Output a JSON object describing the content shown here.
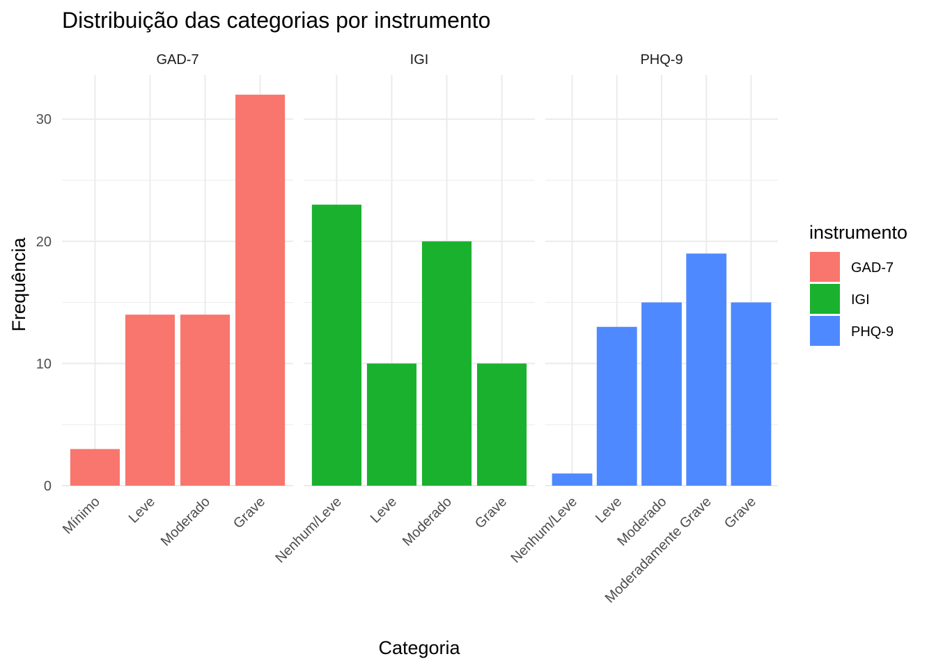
{
  "chart_data": {
    "type": "bar",
    "title": "Distribuição das categorias por instrumento",
    "xlabel": "Categoria",
    "ylabel": "Frequência",
    "ylim": [
      0,
      33.6
    ],
    "yticks": [
      0,
      10,
      20,
      30
    ],
    "grid": true,
    "legend": {
      "title": "instrumento",
      "placement": "right",
      "items": [
        {
          "label": "GAD-7",
          "color": "#F8766D"
        },
        {
          "label": "IGI",
          "color": "#1AB12F"
        },
        {
          "label": "PHQ-9",
          "color": "#4F89FF"
        }
      ]
    },
    "facets": [
      {
        "name": "GAD-7",
        "color": "#F8766D",
        "categories": [
          "Mínimo",
          "Leve",
          "Moderado",
          "Grave"
        ],
        "values": [
          3,
          14,
          14,
          32
        ]
      },
      {
        "name": "IGI",
        "color": "#1AB12F",
        "categories": [
          "Nenhum/Leve",
          "Leve",
          "Moderado",
          "Grave"
        ],
        "values": [
          23,
          10,
          20,
          10
        ]
      },
      {
        "name": "PHQ-9",
        "color": "#4F89FF",
        "categories": [
          "Nenhum/Leve",
          "Leve",
          "Moderado",
          "Moderadamente Grave",
          "Grave"
        ],
        "values": [
          1,
          13,
          15,
          19,
          15
        ]
      }
    ]
  }
}
